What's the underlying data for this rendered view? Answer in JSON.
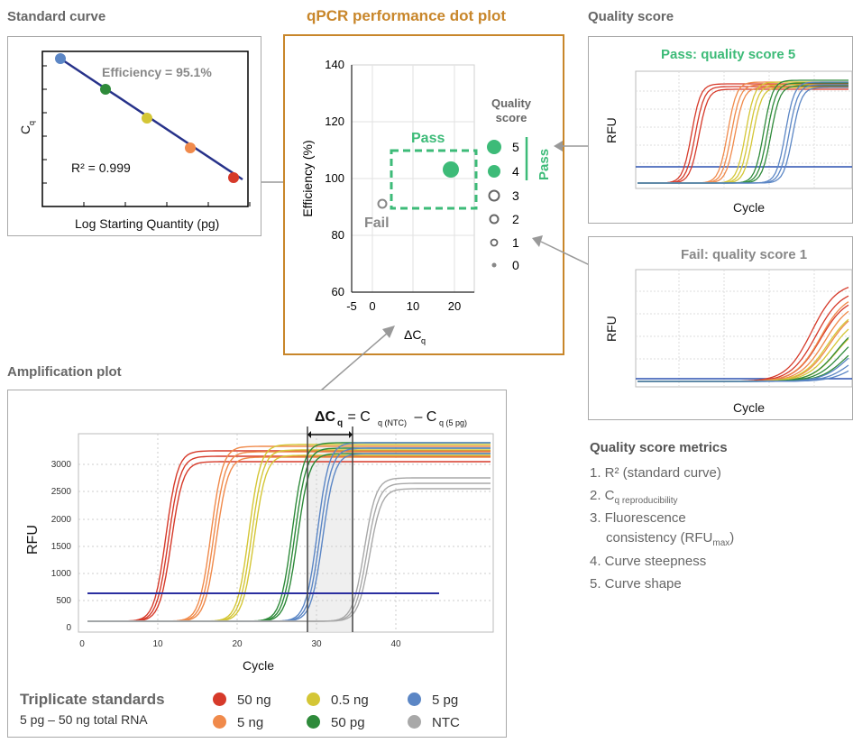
{
  "standard_curve": {
    "title": "Standard curve",
    "ylabel": "C",
    "ylabel_sub": "q",
    "xlabel": "Log Starting Quantity (pg)",
    "efficiency_label": "Efficiency = 95.1%",
    "r2_label": "R² = 0.999",
    "colors": {
      "line": "#27328a",
      "points": [
        "#5b86c5",
        "#2e8a3a",
        "#d4c636",
        "#f08a4b",
        "#d63a2a"
      ]
    }
  },
  "dot_plot": {
    "title": "qPCR performance dot plot",
    "ylabel": "Efficiency (%)",
    "xlabel": "ΔC",
    "xlabel_sub": "q",
    "pass_label": "Pass",
    "fail_label": "Fail",
    "quality_score_header_1": "Quality",
    "quality_score_header_2": "score",
    "pass_vertical_label": "Pass",
    "score_labels": [
      "5",
      "4",
      "3",
      "2",
      "1",
      "0"
    ],
    "yticks": [
      "140",
      "120",
      "100",
      "80",
      "60"
    ],
    "xticks": [
      "-5",
      "0",
      "10",
      "20"
    ],
    "colors": {
      "title": "#c8862a",
      "pass": "#3dbb78",
      "fail": "#888888"
    }
  },
  "quality_pass": {
    "title": "Quality score",
    "header": "Pass: quality score 5",
    "ylabel": "RFU",
    "xlabel": "Cycle"
  },
  "quality_fail": {
    "header": "Fail: quality score 1",
    "ylabel": "RFU",
    "xlabel": "Cycle"
  },
  "metrics": {
    "title": "Quality score metrics",
    "items": [
      "1. R² (standard curve)",
      "2. C",
      "q reproducibility",
      "3. Fluorescence",
      "consistency (RFU",
      "max",
      ")",
      "4. Curve steepness",
      "5. Curve shape"
    ]
  },
  "amplification": {
    "title": "Amplification plot",
    "ylabel": "RFU",
    "xlabel": "Cycle",
    "delta_formula_lhs": "ΔC",
    "delta_formula_sub": "q",
    "delta_formula_eq": " = C",
    "delta_formula_sub2": "q (NTC)",
    "delta_formula_minus": " – C",
    "delta_formula_sub3": "q (5 pg)",
    "yticks": [
      "3000",
      "2500",
      "2000",
      "1500",
      "1000",
      "500",
      "0"
    ],
    "xticks": [
      "0",
      "10",
      "20",
      "30",
      "40"
    ]
  },
  "legend": {
    "title": "Triplicate standards",
    "subtitle": "5 pg – 50 ng total RNA",
    "items": [
      {
        "label": "50 ng",
        "color": "#d63a2a"
      },
      {
        "label": "0.5 ng",
        "color": "#d4c636"
      },
      {
        "label": "5 pg",
        "color": "#5b86c5"
      },
      {
        "label": "5 ng",
        "color": "#f08a4b"
      },
      {
        "label": "50 pg",
        "color": "#2e8a3a"
      },
      {
        "label": "NTC",
        "color": "#a8a8a8"
      }
    ]
  }
}
